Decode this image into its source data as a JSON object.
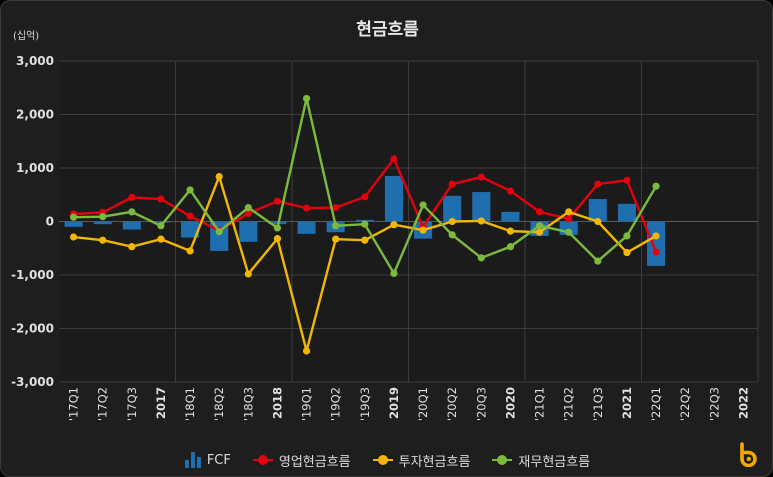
{
  "chart_data": {
    "type": "bar+line",
    "title": "현금흐름",
    "unit_label": "(십억)",
    "ylim": [
      -3000,
      3000
    ],
    "yticks": [
      3000,
      2000,
      1000,
      0,
      -1000,
      -2000,
      -3000
    ],
    "ytick_labels": [
      "3,000",
      "2,000",
      "1,000",
      "0",
      "-1,000",
      "-2,000",
      "-3,000"
    ],
    "categories": [
      "'17Q1",
      "'17Q2",
      "'17Q3",
      "2017",
      "'18Q1",
      "'18Q2",
      "'18Q3",
      "2018",
      "'19Q1",
      "'19Q2",
      "'19Q3",
      "2019",
      "'20Q1",
      "'20Q2",
      "'20Q3",
      "2020",
      "'21Q1",
      "'21Q2",
      "'21Q3",
      "2021",
      "'22Q1",
      "'22Q2",
      "'22Q3",
      "2022"
    ],
    "bold_categories": [
      "2017",
      "2018",
      "2019",
      "2020",
      "2021",
      "2022"
    ],
    "series": [
      {
        "name": "FCF",
        "kind": "bar",
        "color": "#1f6fb0",
        "values": [
          -100,
          -50,
          -150,
          0,
          -300,
          -550,
          -380,
          -50,
          -230,
          -200,
          30,
          850,
          -320,
          480,
          550,
          180,
          -270,
          -250,
          420,
          330,
          -830,
          null,
          null,
          null
        ]
      },
      {
        "name": "영업현금흐름",
        "kind": "line",
        "color": "#e3000f",
        "values": [
          140,
          170,
          450,
          420,
          100,
          -170,
          150,
          380,
          250,
          260,
          460,
          1170,
          -100,
          700,
          830,
          570,
          180,
          50,
          700,
          770,
          -570,
          null,
          null,
          null
        ]
      },
      {
        "name": "투자현금흐름",
        "kind": "line",
        "color": "#f2b705",
        "values": [
          -290,
          -350,
          -470,
          -330,
          -550,
          840,
          -980,
          -320,
          -2420,
          -330,
          -350,
          -60,
          -160,
          0,
          10,
          -180,
          -200,
          180,
          0,
          -580,
          -270,
          null,
          null,
          null
        ]
      },
      {
        "name": "재무현금흐름",
        "kind": "line",
        "color": "#7cba3d",
        "values": [
          80,
          90,
          180,
          -80,
          590,
          -190,
          260,
          -120,
          2300,
          -80,
          -50,
          -970,
          310,
          -250,
          -680,
          -470,
          -80,
          -200,
          -740,
          -270,
          660,
          null,
          null,
          null
        ]
      }
    ],
    "legend_position": "bottom-center",
    "grid": true
  }
}
